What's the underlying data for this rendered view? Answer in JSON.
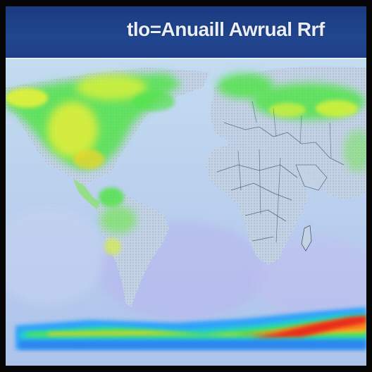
{
  "header": {
    "title": "tlo=Anuaill Awrual Rrf"
  },
  "map": {
    "ocean_color": "#bcd4ee",
    "land_fill_color": "#c4d2e6",
    "border_color": "#3a4a5c",
    "heat_colors": [
      "#1e9bff",
      "#21d4c7",
      "#52e44b",
      "#d8f23a",
      "#ffcf1f",
      "#ff7a1a",
      "#e8221a"
    ]
  }
}
